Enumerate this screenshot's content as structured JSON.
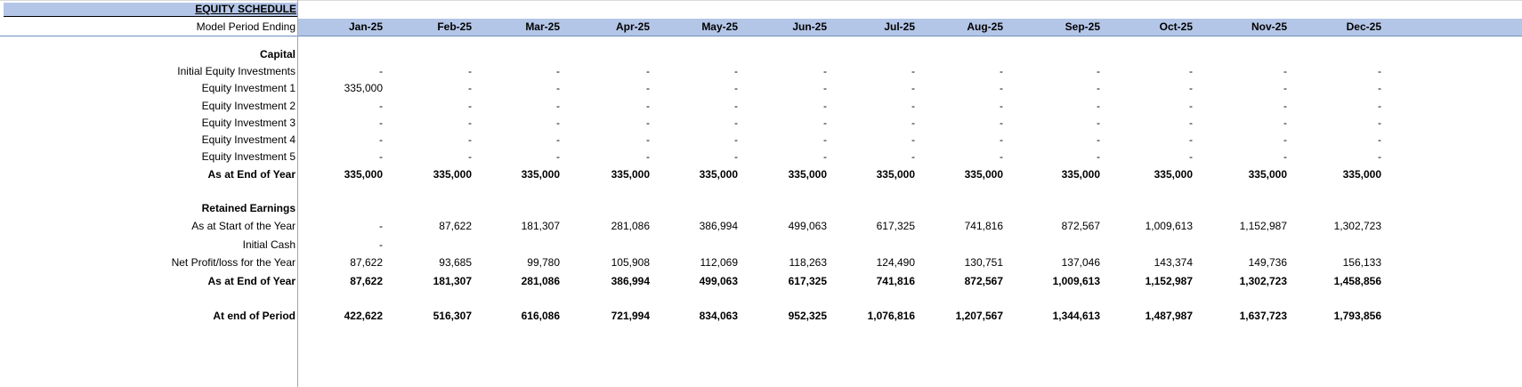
{
  "sheet": {
    "title": "EQUITY SCHEDULE",
    "period_label": "Model Period Ending",
    "months": [
      "Jan-25",
      "Feb-25",
      "Mar-25",
      "Apr-25",
      "May-25",
      "Jun-25",
      "Jul-25",
      "Aug-25",
      "Sep-25",
      "Oct-25",
      "Nov-25",
      "Dec-25"
    ]
  },
  "colors": {
    "header_fill": "#b4c6e7",
    "grid": "#a6a6a6"
  },
  "rows": [
    {
      "label": "Capital",
      "bold": true,
      "values": []
    },
    {
      "label": "Initial Equity Investments",
      "bold": false,
      "values": [
        "-",
        "-",
        "-",
        "-",
        "-",
        "-",
        "-",
        "-",
        "-",
        "-",
        "-",
        "-"
      ]
    },
    {
      "label": "Equity Investment 1",
      "bold": false,
      "values": [
        "335,000",
        "-",
        "-",
        "-",
        "-",
        "-",
        "-",
        "-",
        "-",
        "-",
        "-",
        "-"
      ]
    },
    {
      "label": "Equity Investment 2",
      "bold": false,
      "values": [
        "-",
        "-",
        "-",
        "-",
        "-",
        "-",
        "-",
        "-",
        "-",
        "-",
        "-",
        "-"
      ]
    },
    {
      "label": "Equity Investment 3",
      "bold": false,
      "values": [
        "-",
        "-",
        "-",
        "-",
        "-",
        "-",
        "-",
        "-",
        "-",
        "-",
        "-",
        "-"
      ]
    },
    {
      "label": "Equity Investment 4",
      "bold": false,
      "values": [
        "-",
        "-",
        "-",
        "-",
        "-",
        "-",
        "-",
        "-",
        "-",
        "-",
        "-",
        "-"
      ]
    },
    {
      "label": "Equity Investment 5",
      "bold": false,
      "values": [
        "-",
        "-",
        "-",
        "-",
        "-",
        "-",
        "-",
        "-",
        "-",
        "-",
        "-",
        "-"
      ]
    },
    {
      "label": "As at End of Year",
      "bold": true,
      "values": [
        "335,000",
        "335,000",
        "335,000",
        "335,000",
        "335,000",
        "335,000",
        "335,000",
        "335,000",
        "335,000",
        "335,000",
        "335,000",
        "335,000"
      ]
    },
    {
      "label": "Retained Earnings",
      "bold": true,
      "values": []
    },
    {
      "label": "As at Start of the Year",
      "bold": false,
      "values": [
        "-",
        "87,622",
        "181,307",
        "281,086",
        "386,994",
        "499,063",
        "617,325",
        "741,816",
        "872,567",
        "1,009,613",
        "1,152,987",
        "1,302,723"
      ]
    },
    {
      "label": "Initial Cash",
      "bold": false,
      "values": [
        "-",
        "",
        "",
        "",
        "",
        "",
        "",
        "",
        "",
        "",
        "",
        ""
      ]
    },
    {
      "label": "Net Profit/loss for the Year",
      "bold": false,
      "values": [
        "87,622",
        "93,685",
        "99,780",
        "105,908",
        "112,069",
        "118,263",
        "124,490",
        "130,751",
        "137,046",
        "143,374",
        "149,736",
        "156,133"
      ]
    },
    {
      "label": "As at End of Year",
      "bold": true,
      "values": [
        "87,622",
        "181,307",
        "281,086",
        "386,994",
        "499,063",
        "617,325",
        "741,816",
        "872,567",
        "1,009,613",
        "1,152,987",
        "1,302,723",
        "1,458,856"
      ]
    },
    {
      "label": "At end of Period",
      "bold": true,
      "values": [
        "422,622",
        "516,307",
        "616,086",
        "721,994",
        "834,063",
        "952,325",
        "1,076,816",
        "1,207,567",
        "1,344,613",
        "1,487,987",
        "1,637,723",
        "1,793,856"
      ]
    }
  ]
}
